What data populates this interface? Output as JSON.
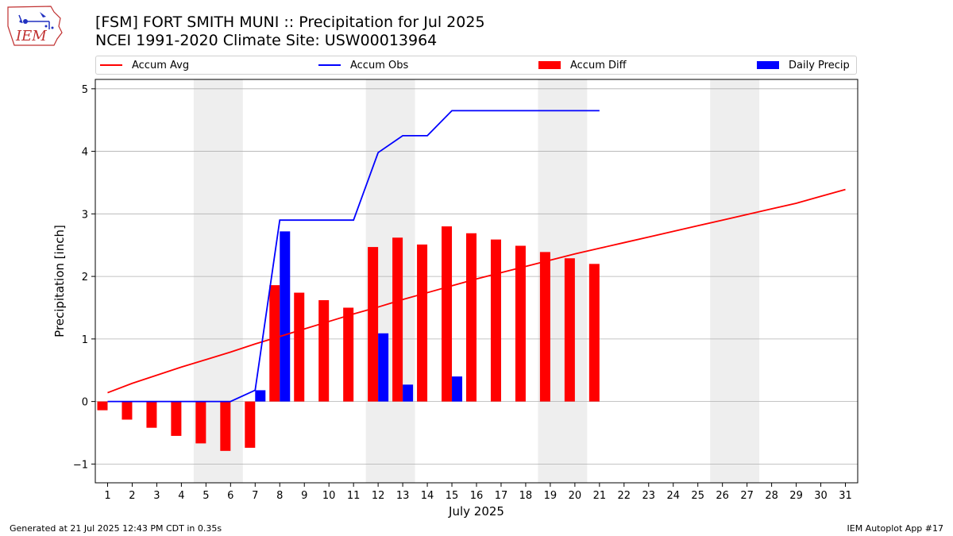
{
  "header": {
    "title_line1": "[FSM] FORT SMITH MUNI :: Precipitation for Jul 2025",
    "title_line2": "NCEI 1991-2020 Climate Site: USW00013964",
    "logo_text": "IEM"
  },
  "footer": {
    "left": "Generated at 21 Jul 2025 12:43 PM CDT in 0.35s",
    "right": "IEM Autoplot App #17"
  },
  "legend": {
    "items": [
      {
        "label": "Accum Avg",
        "kind": "line",
        "color": "#ff0000"
      },
      {
        "label": "Accum Obs",
        "kind": "line",
        "color": "#0000ff"
      },
      {
        "label": "Accum Diff",
        "kind": "patch",
        "color": "#ff0000"
      },
      {
        "label": "Daily Precip",
        "kind": "patch",
        "color": "#0000ff"
      }
    ],
    "placement": "top, above plot, spanning width"
  },
  "chart_data": {
    "type": "bar",
    "xlabel": "July 2025",
    "ylabel": "Precipitation [inch]",
    "xlim": [
      0.5,
      31.5
    ],
    "ylim": [
      -1.3,
      5.15
    ],
    "x_ticks": [
      1,
      2,
      3,
      4,
      5,
      6,
      7,
      8,
      9,
      10,
      11,
      12,
      13,
      14,
      15,
      16,
      17,
      18,
      19,
      20,
      21,
      22,
      23,
      24,
      25,
      26,
      27,
      28,
      29,
      30,
      31
    ],
    "y_ticks": [
      -1,
      0,
      1,
      2,
      3,
      4,
      5
    ],
    "y_tick_labels": [
      "−1",
      "0",
      "1",
      "2",
      "3",
      "4",
      "5"
    ],
    "grid": "horizontal",
    "weekend_bands": [
      [
        4.5,
        6.5
      ],
      [
        11.5,
        13.5
      ],
      [
        18.5,
        20.5
      ],
      [
        25.5,
        27.5
      ]
    ],
    "colors": {
      "avg": "#ff0000",
      "obs": "#0000ff",
      "diff": "#ff0000",
      "daily": "#0000ff",
      "band": "#eeeeee",
      "grid": "#b0b0b0"
    },
    "accum_avg": {
      "name": "Accum Avg",
      "x": [
        1,
        2,
        3,
        4,
        5,
        6,
        7,
        8,
        9,
        10,
        11,
        12,
        13,
        14,
        15,
        16,
        17,
        18,
        19,
        20,
        21,
        22,
        23,
        24,
        25,
        26,
        27,
        28,
        29,
        30,
        31
      ],
      "values": [
        0.14,
        0.29,
        0.42,
        0.55,
        0.67,
        0.79,
        0.92,
        1.04,
        1.16,
        1.28,
        1.4,
        1.51,
        1.63,
        1.74,
        1.85,
        1.96,
        2.06,
        2.16,
        2.26,
        2.36,
        2.45,
        2.54,
        2.63,
        2.72,
        2.81,
        2.9,
        2.99,
        3.08,
        3.17,
        3.28,
        3.39
      ]
    },
    "accum_obs": {
      "name": "Accum Obs",
      "x": [
        1,
        2,
        3,
        4,
        5,
        6,
        7,
        8,
        9,
        10,
        11,
        12,
        13,
        14,
        15,
        16,
        17,
        18,
        19,
        20,
        21
      ],
      "values": [
        0,
        0,
        0,
        0,
        0,
        0,
        0.18,
        2.9,
        2.9,
        2.9,
        2.9,
        3.98,
        4.25,
        4.25,
        4.65,
        4.65,
        4.65,
        4.65,
        4.65,
        4.65,
        4.65
      ]
    },
    "accum_diff": {
      "name": "Accum Diff",
      "x": [
        1,
        2,
        3,
        4,
        5,
        6,
        7,
        8,
        9,
        10,
        11,
        12,
        13,
        14,
        15,
        16,
        17,
        18,
        19,
        20,
        21
      ],
      "values": [
        -0.14,
        -0.29,
        -0.42,
        -0.55,
        -0.67,
        -0.79,
        -0.74,
        1.86,
        1.74,
        1.62,
        1.5,
        2.47,
        2.62,
        2.51,
        2.8,
        2.69,
        2.59,
        2.49,
        2.39,
        2.29,
        2.2
      ]
    },
    "daily_precip": {
      "name": "Daily Precip",
      "x": [
        7,
        8,
        12,
        13,
        15
      ],
      "values": [
        0.18,
        2.72,
        1.09,
        0.27,
        0.4
      ]
    }
  }
}
